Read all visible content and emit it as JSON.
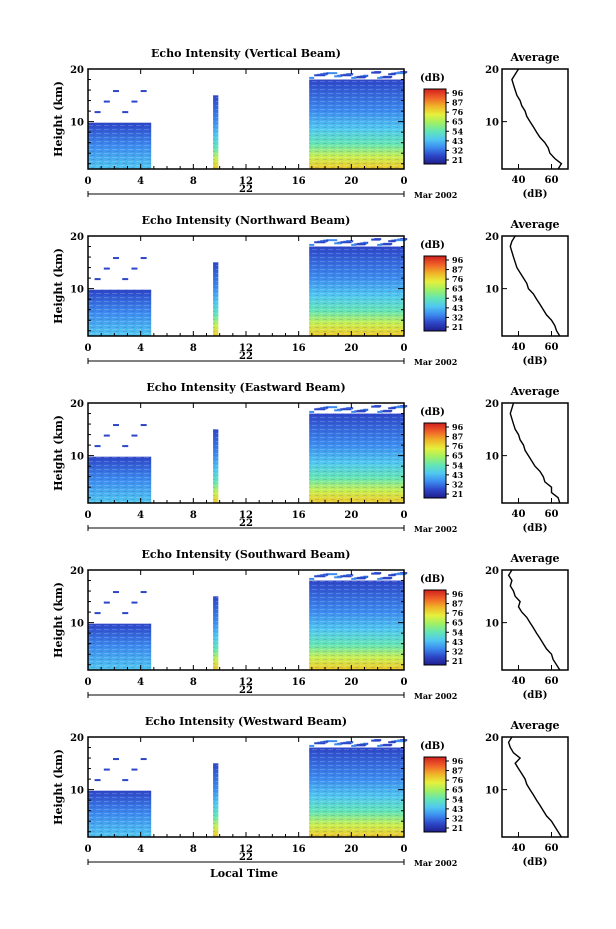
{
  "chart_data": {
    "type": "heatmap",
    "x_tick_labels": [
      "0",
      "4",
      "8",
      "12",
      "16",
      "20",
      "0"
    ],
    "y_tick_labels": [
      "20",
      "10"
    ],
    "ylabel": "Height (km)",
    "date_day": "22",
    "date_month_year": "Mar 2002",
    "xlabel": "Local Time",
    "xlim": [
      0,
      24
    ],
    "ylim": [
      1,
      20
    ],
    "data_coverage_hours": [
      [
        0,
        4.8
      ],
      [
        9.5,
        9.9
      ],
      [
        16.8,
        24
      ]
    ],
    "colorbar": {
      "unit": "(dB)",
      "ticks": [
        "96",
        "87",
        "76",
        "65",
        "54",
        "43",
        "32",
        "21"
      ],
      "colors": [
        "#1e1e8c",
        "#2d46c8",
        "#3c8cf0",
        "#50c8f0",
        "#64e6b4",
        "#a0f064",
        "#e6f03c",
        "#f0b428",
        "#f06428",
        "#d21e1e"
      ]
    },
    "profile_axis": {
      "title": "Average",
      "xlabel": "(dB)",
      "x_tick_labels": [
        "40",
        "60"
      ],
      "xlim": [
        30,
        70
      ],
      "y_tick_labels": [
        "20",
        "10"
      ]
    },
    "panels": [
      {
        "title": "Echo Intensity (Vertical Beam)",
        "profile_height_km": [
          1,
          2,
          3,
          4,
          5,
          6,
          7,
          8,
          9,
          10,
          11,
          12,
          13,
          14,
          15,
          16,
          17,
          18,
          19,
          20
        ],
        "profile_db": [
          64,
          66,
          62,
          59,
          58,
          56,
          53,
          51,
          49,
          47,
          45,
          44,
          42,
          41,
          39,
          38,
          37,
          36,
          38,
          40
        ]
      },
      {
        "title": "Echo Intensity (Northward Beam)",
        "profile_height_km": [
          1,
          2,
          3,
          4,
          5,
          6,
          7,
          8,
          9,
          10,
          11,
          12,
          13,
          14,
          15,
          16,
          17,
          18,
          19,
          20
        ],
        "profile_db": [
          65,
          63,
          62,
          60,
          57,
          55,
          53,
          51,
          49,
          46,
          45,
          43,
          41,
          39,
          38,
          37,
          36,
          35,
          36,
          38
        ]
      },
      {
        "title": "Echo Intensity (Eastward Beam)",
        "profile_height_km": [
          1,
          2,
          3,
          4,
          5,
          6,
          7,
          8,
          9,
          10,
          11,
          12,
          13,
          14,
          15,
          16,
          17,
          18,
          19,
          20
        ],
        "profile_db": [
          65,
          64,
          60,
          60,
          56,
          55,
          53,
          50,
          48,
          46,
          44,
          43,
          41,
          40,
          38,
          37,
          36,
          35,
          36,
          37
        ]
      },
      {
        "title": "Echo Intensity (Southward Beam)",
        "profile_height_km": [
          1,
          2,
          3,
          4,
          5,
          6,
          7,
          8,
          9,
          10,
          11,
          12,
          13,
          14,
          15,
          16,
          17,
          18,
          19,
          20
        ],
        "profile_db": [
          65,
          63,
          61,
          60,
          57,
          55,
          53,
          51,
          49,
          47,
          45,
          42,
          40,
          41,
          38,
          37,
          35,
          36,
          34,
          36
        ]
      },
      {
        "title": "Echo Intensity (Westward Beam)",
        "profile_height_km": [
          1,
          2,
          3,
          4,
          5,
          6,
          7,
          8,
          9,
          10,
          11,
          12,
          13,
          14,
          15,
          16,
          17,
          18,
          19,
          20
        ],
        "profile_db": [
          66,
          64,
          62,
          60,
          57,
          55,
          53,
          51,
          49,
          47,
          45,
          44,
          42,
          40,
          38,
          41,
          37,
          35,
          34,
          36
        ]
      }
    ]
  }
}
